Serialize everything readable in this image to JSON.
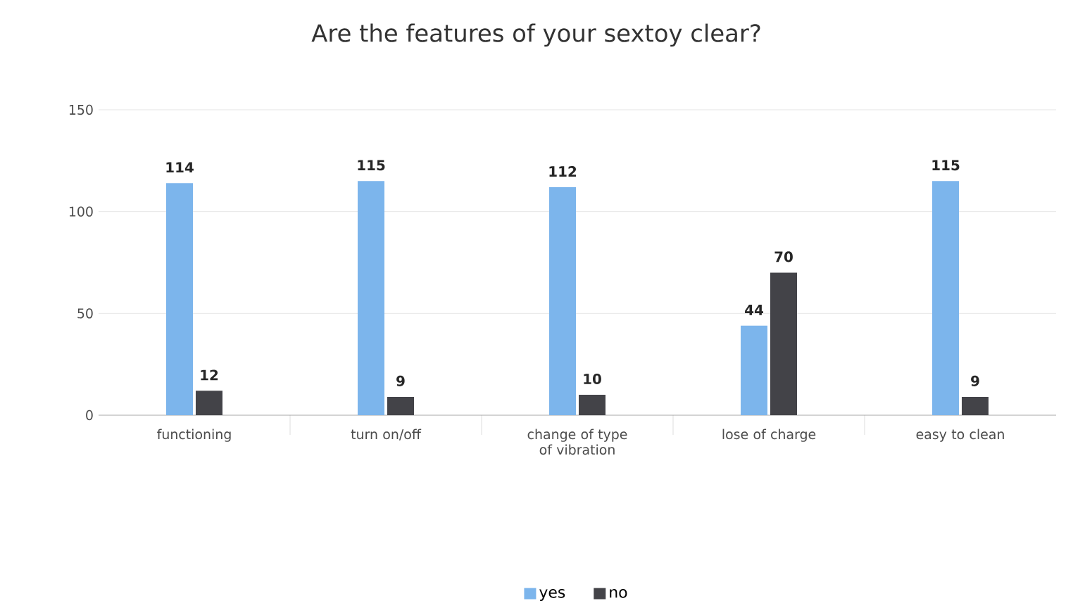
{
  "chart_data": {
    "type": "bar",
    "title": "Are the features of your sextoy clear?",
    "categories": [
      "functioning",
      "turn on/off",
      "change of type of vibration",
      "lose of charge",
      "easy to clean"
    ],
    "series": [
      {
        "name": "yes",
        "color": "#7cb5ec",
        "values": [
          114,
          115,
          112,
          44,
          115
        ]
      },
      {
        "name": "no",
        "color": "#434348",
        "values": [
          12,
          9,
          10,
          70,
          9
        ]
      }
    ],
    "ylim": [
      0,
      150
    ],
    "yticks": [
      0,
      50,
      100,
      150
    ],
    "grid": "y",
    "legend": "bottom",
    "data_labels": true
  }
}
